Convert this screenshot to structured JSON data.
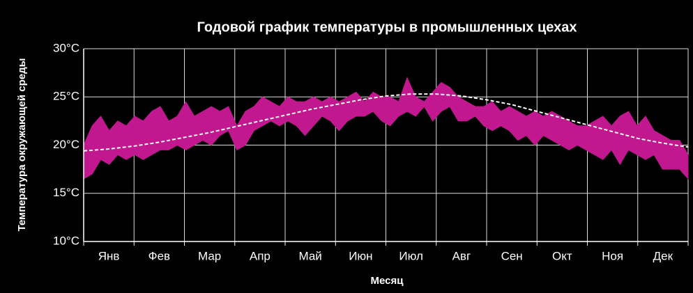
{
  "chart_data": {
    "type": "band",
    "title": "Годовой график температуры в промышленных цехах",
    "x_label": "Месяц",
    "y_label": "Температура окружающей среды",
    "categories": [
      "Янв",
      "Фев",
      "Мар",
      "Апр",
      "Май",
      "Июн",
      "Июл",
      "Авг",
      "Сен",
      "Окт",
      "Ноя",
      "Дек"
    ],
    "ylim": [
      10,
      30
    ],
    "yticks": [
      {
        "value": 10,
        "label": "10°C"
      },
      {
        "value": 15,
        "label": "15°C"
      },
      {
        "value": 20,
        "label": "20°C"
      },
      {
        "value": 25,
        "label": "25°C"
      },
      {
        "value": 30,
        "label": "30°C"
      }
    ],
    "grid": true,
    "band": {
      "color": "#c2188f",
      "lower": [
        16.5,
        17,
        18.5,
        18,
        19,
        18.5,
        19,
        18.5,
        19,
        19.5,
        19.5,
        20,
        19.5,
        20,
        20.5,
        20,
        21,
        21.5,
        19.5,
        20,
        21.5,
        22,
        22.5,
        22,
        22.5,
        22,
        21,
        22,
        23,
        22.5,
        21.5,
        22.5,
        23,
        23,
        23.5,
        22.5,
        22,
        23,
        23.5,
        23,
        24,
        22.5,
        23.5,
        24,
        22.5,
        22.5,
        23,
        22,
        21.5,
        22,
        21.5,
        20.5,
        21,
        20,
        21,
        20.5,
        20,
        19.5,
        20,
        19.5,
        19,
        18.5,
        19.5,
        18,
        19.5,
        19,
        18.5,
        19,
        17.5,
        17.5,
        17.5,
        16.5
      ],
      "upper": [
        20,
        22,
        23,
        21.5,
        22.5,
        22,
        23,
        22.5,
        23.5,
        24,
        22.5,
        23,
        24.5,
        23,
        23.5,
        24,
        23.5,
        24,
        22,
        23.5,
        24,
        25,
        24.5,
        24,
        25,
        24.5,
        24.5,
        25,
        24.5,
        25,
        24.5,
        25,
        25.5,
        24.5,
        25.5,
        25,
        25,
        24.5,
        27,
        25,
        24.5,
        25.5,
        26.5,
        26,
        25,
        24.5,
        24,
        24,
        24.5,
        23.5,
        24,
        23.5,
        23,
        23.5,
        23,
        23.5,
        23,
        22.5,
        22,
        22,
        22.5,
        23,
        22,
        23,
        23.5,
        22,
        23,
        21.5,
        21,
        20.5,
        20.5,
        19
      ]
    },
    "trend": {
      "color": "#ffffff",
      "values": [
        19.4,
        19.6,
        19.9,
        20.3,
        20.8,
        21.3,
        21.9,
        22.5,
        23.1,
        23.7,
        24.2,
        24.7,
        25.1,
        25.3,
        25.3,
        25.1,
        24.7,
        24.2,
        23.5,
        22.8,
        22.1,
        21.4,
        20.7,
        20.2,
        19.8
      ]
    }
  }
}
